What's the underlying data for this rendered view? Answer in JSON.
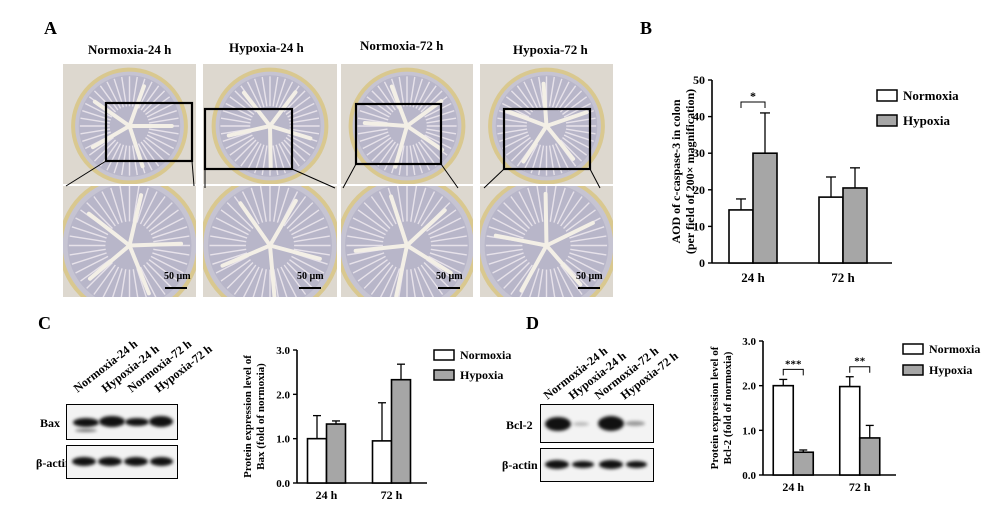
{
  "panels": {
    "a": {
      "letter": "A",
      "labels": [
        "Normoxia-24 h",
        "Hypoxia-24 h",
        "Normoxia-72 h",
        "Hypoxia-72 h"
      ],
      "scale_bar": "50 µm"
    },
    "b": {
      "letter": "B"
    },
    "c": {
      "letter": "C",
      "lanes": [
        "Normoxia-24 h",
        "Hypoxia-24 h",
        "Normoxia-72 h",
        "Hypoxia-72 h"
      ],
      "proteins": [
        "Bax",
        "β-actin"
      ]
    },
    "d": {
      "letter": "D",
      "lanes": [
        "Normoxia-24 h",
        "Hypoxia-24 h",
        "Normoxia-72 h",
        "Hypoxia-72 h"
      ],
      "proteins": [
        "Bcl-2",
        "β-actin"
      ]
    }
  },
  "colors": {
    "normoxia": "#ffffff",
    "hypoxia": "#a6a6a6",
    "tissue": "#ddd8cf"
  },
  "chart_data": [
    {
      "id": "B",
      "type": "bar",
      "categories": [
        "24 h",
        "72 h"
      ],
      "ylabel_lines": [
        "AOD of c-caspase-3 in colon",
        "(per field of 200× magnification)"
      ],
      "ylim": [
        0,
        50
      ],
      "yticks": [
        "0",
        "10",
        "20",
        "30",
        "40",
        "50"
      ],
      "legend_position": "top-right",
      "series": [
        {
          "name": "Normoxia",
          "values": [
            14.5,
            18
          ],
          "errors": [
            3,
            5.5
          ]
        },
        {
          "name": "Hypoxia",
          "values": [
            30,
            20.5
          ],
          "errors": [
            11,
            5.5
          ]
        }
      ],
      "significance": [
        {
          "category": "24 h",
          "label": "*"
        }
      ]
    },
    {
      "id": "C",
      "type": "bar",
      "categories": [
        "24 h",
        "72 h"
      ],
      "ylabel_lines": [
        "Protein expression level of",
        "Bax (fold of normoxia)"
      ],
      "ylim": [
        0,
        3
      ],
      "yticks": [
        "0.0",
        "1.0",
        "2.0",
        "3.0"
      ],
      "legend_position": "top-right",
      "series": [
        {
          "name": "Normoxia",
          "values": [
            1.0,
            0.95
          ],
          "errors": [
            0.52,
            0.86
          ]
        },
        {
          "name": "Hypoxia",
          "values": [
            1.33,
            2.33
          ],
          "errors": [
            0.07,
            0.35
          ]
        }
      ],
      "significance": []
    },
    {
      "id": "D",
      "type": "bar",
      "categories": [
        "24 h",
        "72 h"
      ],
      "ylabel_lines": [
        "Protein expression level of",
        "Bcl-2 (fold of normoxia)"
      ],
      "ylim": [
        0,
        3
      ],
      "yticks": [
        "0.0",
        "1.0",
        "2.0",
        "3.0"
      ],
      "legend_position": "top-right",
      "series": [
        {
          "name": "Normoxia",
          "values": [
            2.0,
            1.98
          ],
          "errors": [
            0.14,
            0.22
          ]
        },
        {
          "name": "Hypoxia",
          "values": [
            0.51,
            0.83
          ],
          "errors": [
            0.05,
            0.28
          ]
        }
      ],
      "significance": [
        {
          "category": "24 h",
          "label": "***"
        },
        {
          "category": "72 h",
          "label": "**"
        }
      ]
    }
  ]
}
